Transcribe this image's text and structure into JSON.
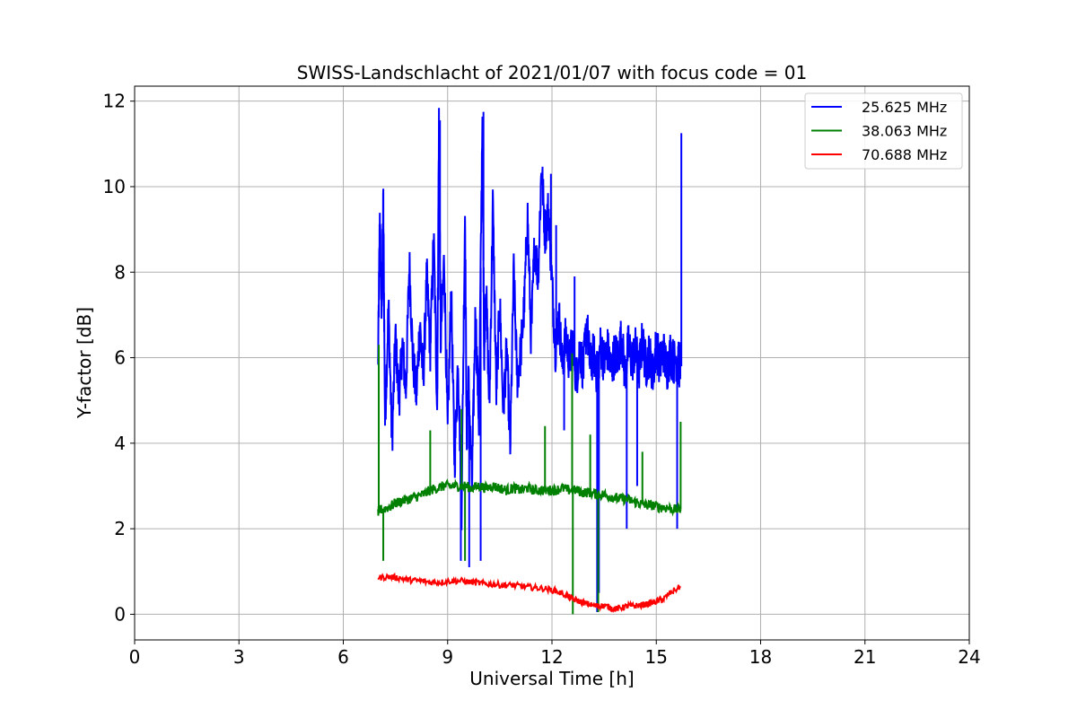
{
  "chart_data": {
    "type": "line",
    "title": "SWISS-Landschlacht of 2021/01/07 with focus code = 01",
    "xlabel": "Universal Time [h]",
    "ylabel": "Y-factor [dB]",
    "xlim": [
      0,
      24
    ],
    "ylim": [
      -0.6,
      12.35
    ],
    "xticks": [
      0,
      3,
      6,
      9,
      12,
      15,
      18,
      21,
      24
    ],
    "yticks": [
      0,
      2,
      4,
      6,
      8,
      10,
      12
    ],
    "grid": true,
    "legend_position": "top-right",
    "series": [
      {
        "name": "25.625 MHz",
        "color": "#0000ff",
        "x": [
          7.0,
          7.05,
          7.1,
          7.15,
          7.2,
          7.3,
          7.4,
          7.5,
          7.6,
          7.7,
          7.8,
          7.9,
          8.0,
          8.1,
          8.2,
          8.3,
          8.4,
          8.5,
          8.6,
          8.7,
          8.75,
          8.8,
          8.9,
          9.0,
          9.1,
          9.2,
          9.3,
          9.4,
          9.5,
          9.55,
          9.6,
          9.7,
          9.8,
          9.9,
          10.0,
          10.05,
          10.1,
          10.2,
          10.3,
          10.4,
          10.5,
          10.6,
          10.7,
          10.8,
          10.9,
          11.0,
          11.1,
          11.2,
          11.3,
          11.4,
          11.5,
          11.6,
          11.7,
          11.8,
          11.9,
          12.0,
          12.1,
          12.2,
          12.3,
          12.4,
          12.5,
          12.6,
          12.7,
          12.8,
          12.9,
          13.0,
          13.1,
          13.2,
          13.3,
          13.4,
          13.5,
          13.6,
          13.7,
          13.8,
          13.9,
          14.0,
          14.1,
          14.2,
          14.3,
          14.4,
          14.5,
          14.6,
          14.7,
          14.8,
          14.9,
          15.0,
          15.1,
          15.2,
          15.3,
          15.4,
          15.5,
          15.6,
          15.65,
          15.7
        ],
        "y": [
          5.8,
          9.3,
          7.0,
          9.6,
          4.5,
          7.2,
          4.0,
          6.5,
          5.0,
          6.3,
          5.2,
          8.2,
          6.0,
          5.1,
          6.8,
          5.5,
          7.9,
          6.2,
          8.8,
          4.8,
          11.5,
          6.4,
          8.3,
          4.2,
          7.6,
          3.5,
          6.0,
          2.5,
          9.4,
          4.0,
          5.5,
          3.0,
          7.1,
          4.5,
          11.7,
          6.0,
          7.8,
          4.8,
          9.6,
          5.2,
          7.3,
          4.8,
          6.2,
          3.9,
          8.0,
          5.5,
          6.1,
          7.2,
          9.3,
          6.4,
          8.7,
          7.9,
          10.5,
          8.9,
          9.5,
          7.8,
          6.2,
          7.0,
          5.8,
          6.5,
          5.9,
          6.4,
          5.5,
          6.2,
          5.7,
          6.8,
          5.8,
          6.1,
          5.6,
          6.3,
          5.9,
          6.2,
          5.7,
          6.1,
          6.0,
          6.5,
          5.6,
          6.3,
          5.9,
          6.2,
          5.7,
          6.4,
          5.8,
          6.1,
          5.6,
          6.3,
          5.8,
          6.2,
          5.7,
          6.1,
          5.9,
          6.0,
          5.8,
          5.9
        ],
        "spikes": [
          [
            9.38,
            1.25
          ],
          [
            9.62,
            1.1
          ],
          [
            9.95,
            1.25
          ],
          [
            13.3,
            0.05
          ],
          [
            13.35,
            0.5
          ],
          [
            15.72,
            11.25
          ],
          [
            10.03,
            11.75
          ],
          [
            8.78,
            11.55
          ],
          [
            11.97,
            10.3
          ],
          [
            12.12,
            9.1
          ],
          [
            12.65,
            7.9
          ],
          [
            12.35,
            4.3
          ],
          [
            14.15,
            2.0
          ],
          [
            14.45,
            3.0
          ],
          [
            15.6,
            2.0
          ]
        ]
      },
      {
        "name": "38.063 MHz",
        "color": "#008000",
        "x": [
          7.0,
          7.1,
          7.3,
          7.5,
          7.7,
          7.9,
          8.1,
          8.3,
          8.5,
          8.7,
          8.9,
          9.1,
          9.3,
          9.5,
          9.7,
          9.9,
          10.1,
          10.3,
          10.5,
          10.7,
          10.9,
          11.1,
          11.3,
          11.5,
          11.7,
          11.9,
          12.1,
          12.3,
          12.5,
          12.7,
          12.9,
          13.1,
          13.3,
          13.5,
          13.7,
          13.9,
          14.1,
          14.3,
          14.5,
          14.7,
          14.9,
          15.1,
          15.3,
          15.5,
          15.7
        ],
        "y": [
          2.4,
          2.45,
          2.5,
          2.6,
          2.65,
          2.7,
          2.75,
          2.8,
          2.9,
          2.95,
          3.0,
          3.0,
          3.0,
          3.0,
          2.95,
          3.0,
          2.95,
          3.0,
          2.95,
          2.9,
          2.95,
          2.9,
          2.95,
          2.9,
          2.9,
          2.9,
          2.9,
          2.95,
          2.9,
          2.9,
          2.85,
          2.85,
          2.8,
          2.8,
          2.75,
          2.7,
          2.7,
          2.65,
          2.6,
          2.55,
          2.55,
          2.5,
          2.5,
          2.45,
          2.45
        ],
        "spikes": [
          [
            7.02,
            6.3
          ],
          [
            7.15,
            1.25
          ],
          [
            9.5,
            1.25
          ],
          [
            12.6,
            0.0
          ],
          [
            13.33,
            0.05
          ],
          [
            12.58,
            6.1
          ],
          [
            11.8,
            4.4
          ],
          [
            9.4,
            4.8
          ],
          [
            8.5,
            4.3
          ],
          [
            13.1,
            4.2
          ],
          [
            14.6,
            3.8
          ],
          [
            15.7,
            4.5
          ]
        ]
      },
      {
        "name": "70.688 MHz",
        "color": "#ff0000",
        "x": [
          7.0,
          7.3,
          7.6,
          7.9,
          8.2,
          8.5,
          8.8,
          9.1,
          9.4,
          9.7,
          10.0,
          10.3,
          10.6,
          10.9,
          11.2,
          11.5,
          11.8,
          12.1,
          12.4,
          12.6,
          12.8,
          13.0,
          13.2,
          13.4,
          13.6,
          13.8,
          14.0,
          14.2,
          14.4,
          14.6,
          14.8,
          15.0,
          15.2,
          15.4,
          15.7
        ],
        "y": [
          0.85,
          0.88,
          0.85,
          0.8,
          0.78,
          0.75,
          0.75,
          0.78,
          0.78,
          0.75,
          0.72,
          0.7,
          0.68,
          0.68,
          0.65,
          0.62,
          0.6,
          0.55,
          0.45,
          0.35,
          0.3,
          0.25,
          0.2,
          0.2,
          0.18,
          0.12,
          0.15,
          0.2,
          0.2,
          0.22,
          0.25,
          0.3,
          0.35,
          0.5,
          0.65
        ],
        "spikes": []
      }
    ]
  }
}
